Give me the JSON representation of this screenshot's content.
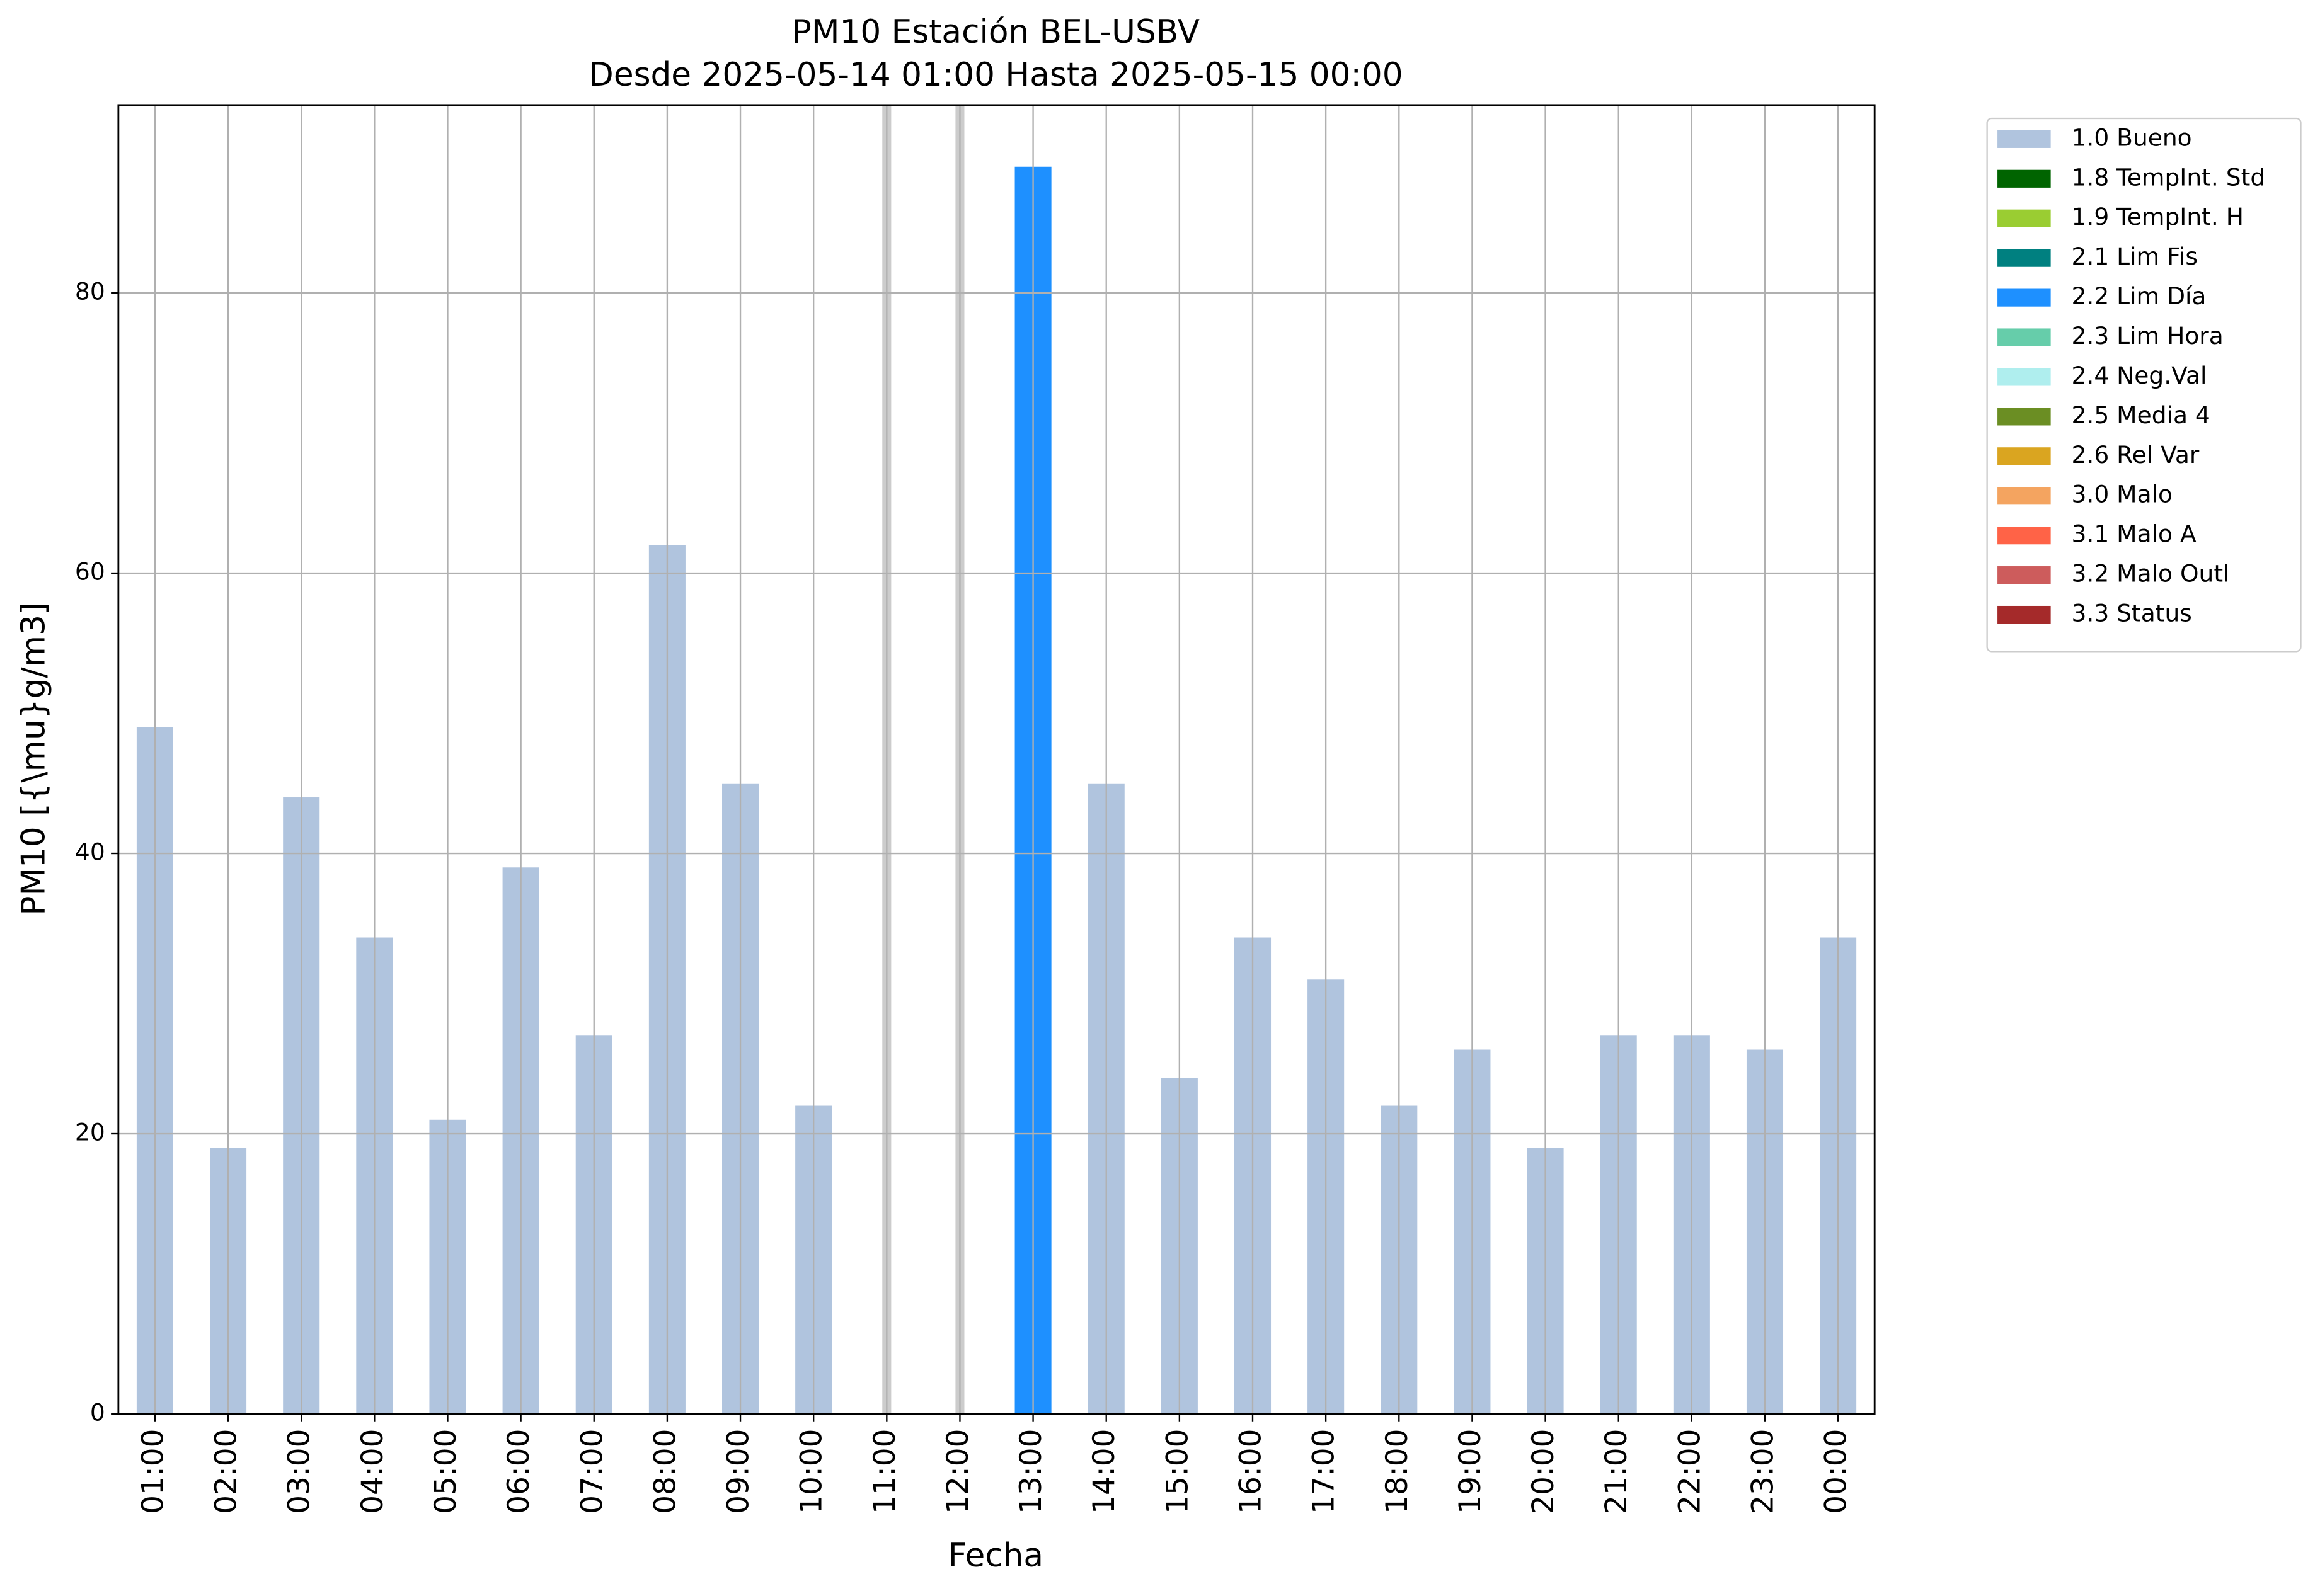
{
  "chart_data": {
    "type": "bar",
    "stacked": true,
    "title": "PM10 Estación BEL-USBV",
    "subtitle": "Desde 2025-05-14 01:00 Hasta 2025-05-15 00:00",
    "x_label": "Fecha",
    "y_label": "PM10 [{\\mu}g/m3]",
    "categories": [
      "01:00",
      "02:00",
      "03:00",
      "04:00",
      "05:00",
      "06:00",
      "07:00",
      "08:00",
      "09:00",
      "10:00",
      "11:00",
      "12:00",
      "13:00",
      "14:00",
      "15:00",
      "16:00",
      "17:00",
      "18:00",
      "19:00",
      "20:00",
      "21:00",
      "22:00",
      "23:00",
      "00:00"
    ],
    "series": [
      {
        "name": "1.0 Bueno",
        "color": "#b0c4de",
        "values": [
          49,
          19,
          44,
          34,
          21,
          39,
          27,
          62,
          45,
          22,
          null,
          null,
          null,
          45,
          24,
          34,
          31,
          22,
          26,
          19,
          27,
          27,
          26,
          34
        ]
      },
      {
        "name": "1.8 TempInt. Std",
        "color": "#006400",
        "values": [
          null,
          null,
          null,
          null,
          null,
          null,
          null,
          null,
          null,
          null,
          null,
          null,
          null,
          null,
          null,
          null,
          null,
          null,
          null,
          null,
          null,
          null,
          null,
          null
        ]
      },
      {
        "name": "1.9 TempInt. H",
        "color": "#9acd32",
        "values": [
          null,
          null,
          null,
          null,
          null,
          null,
          null,
          null,
          null,
          null,
          null,
          null,
          null,
          null,
          null,
          null,
          null,
          null,
          null,
          null,
          null,
          null,
          null,
          null
        ]
      },
      {
        "name": "2.1 Lim Fis",
        "color": "#008080",
        "values": [
          null,
          null,
          null,
          null,
          null,
          null,
          null,
          null,
          null,
          null,
          null,
          null,
          null,
          null,
          null,
          null,
          null,
          null,
          null,
          null,
          null,
          null,
          null,
          null
        ]
      },
      {
        "name": "2.2 Lim Día",
        "color": "#1e90ff",
        "values": [
          null,
          null,
          null,
          null,
          null,
          null,
          null,
          null,
          null,
          null,
          null,
          null,
          89,
          null,
          null,
          null,
          null,
          null,
          null,
          null,
          null,
          null,
          null,
          null
        ]
      },
      {
        "name": "2.3 Lim Hora",
        "color": "#66cdaa",
        "values": [
          null,
          null,
          null,
          null,
          null,
          null,
          null,
          null,
          null,
          null,
          null,
          null,
          null,
          null,
          null,
          null,
          null,
          null,
          null,
          null,
          null,
          null,
          null,
          null
        ]
      },
      {
        "name": "2.4 Neg.Val",
        "color": "#afeeee",
        "values": [
          null,
          null,
          null,
          null,
          null,
          null,
          null,
          null,
          null,
          null,
          null,
          null,
          null,
          null,
          null,
          null,
          null,
          null,
          null,
          null,
          null,
          null,
          null,
          null
        ]
      },
      {
        "name": "2.5 Media 4",
        "color": "#6b8e23",
        "values": [
          null,
          null,
          null,
          null,
          null,
          null,
          null,
          null,
          null,
          null,
          null,
          null,
          null,
          null,
          null,
          null,
          null,
          null,
          null,
          null,
          null,
          null,
          null,
          null
        ]
      },
      {
        "name": "2.6 Rel Var",
        "color": "#daa520",
        "values": [
          null,
          null,
          null,
          null,
          null,
          null,
          null,
          null,
          null,
          null,
          null,
          null,
          null,
          null,
          null,
          null,
          null,
          null,
          null,
          null,
          null,
          null,
          null,
          null
        ]
      },
      {
        "name": "3.0 Malo",
        "color": "#f4a460",
        "values": [
          null,
          null,
          null,
          null,
          null,
          null,
          null,
          null,
          null,
          null,
          null,
          null,
          null,
          null,
          null,
          null,
          null,
          null,
          null,
          null,
          null,
          null,
          null,
          null
        ]
      },
      {
        "name": "3.1 Malo A",
        "color": "#ff6347",
        "values": [
          null,
          null,
          null,
          null,
          null,
          null,
          null,
          null,
          null,
          null,
          null,
          null,
          null,
          null,
          null,
          null,
          null,
          null,
          null,
          null,
          null,
          null,
          null,
          null
        ]
      },
      {
        "name": "3.2 Malo Outl",
        "color": "#cd5c5c",
        "values": [
          null,
          null,
          null,
          null,
          null,
          null,
          null,
          null,
          null,
          null,
          null,
          null,
          null,
          null,
          null,
          null,
          null,
          null,
          null,
          null,
          null,
          null,
          null,
          null
        ]
      },
      {
        "name": "3.3 Status",
        "color": "#a52a2a",
        "values": [
          null,
          null,
          null,
          null,
          null,
          null,
          null,
          null,
          null,
          null,
          null,
          null,
          null,
          null,
          null,
          null,
          null,
          null,
          null,
          null,
          null,
          null,
          null,
          null
        ]
      }
    ],
    "ylim": [
      0,
      93.4
    ],
    "yticks": [
      0,
      20,
      40,
      60,
      80
    ],
    "grid": true,
    "legend": "outside right"
  }
}
